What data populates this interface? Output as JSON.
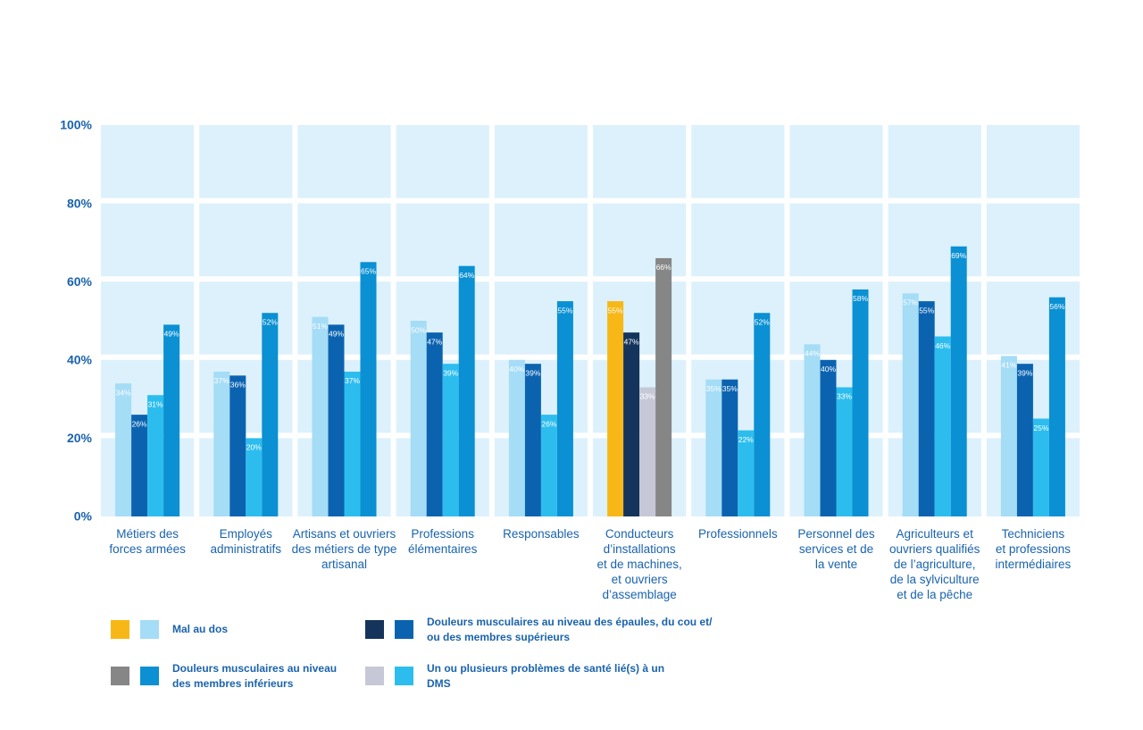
{
  "chart_data": {
    "type": "bar",
    "categories": [
      "Métiers des\nforces armées",
      "Employés\nadministratifs",
      "Artisans et ouvriers\ndes métiers de type\nartisanal",
      "Professions\nélémentaires",
      "Responsables",
      "Conducteurs\nd’installations\net de machines,\net ouvriers\nd’assemblage",
      "Professionnels",
      "Personnel des\nservices et de\nla vente",
      "Agriculteurs et\nouvriers qualifiés\nde l’agriculture,\nde la sylviculture\net de la pêche",
      "Techniciens\net professions\nintermédiaires"
    ],
    "series": [
      {
        "name": "Mal au dos",
        "color": "#a5dcf6",
        "colors": [
          "#a5dcf6",
          "#a5dcf6",
          "#a5dcf6",
          "#a5dcf6",
          "#a5dcf6",
          "#f7b817",
          "#a5dcf6",
          "#a5dcf6",
          "#a5dcf6",
          "#a5dcf6"
        ],
        "values": [
          34,
          37,
          51,
          50,
          40,
          55,
          35,
          44,
          57,
          41
        ],
        "value_labels": [
          "34%",
          "37%",
          "51%",
          "50%",
          "40%",
          "55%",
          "35%",
          "44%",
          "57%",
          "41%"
        ]
      },
      {
        "name": "Douleurs musculaires au niveau des épaules, du cou et/ ou des membres supérieurs",
        "color": "#0b63b0",
        "colors": [
          "#0b63b0",
          "#0b63b0",
          "#0b63b0",
          "#0b63b0",
          "#0b63b0",
          "#15345c",
          "#0b63b0",
          "#0b63b0",
          "#0b63b0",
          "#0b63b0"
        ],
        "values": [
          26,
          36,
          49,
          47,
          39,
          47,
          35,
          40,
          55,
          39
        ],
        "value_labels": [
          "26%",
          "36%",
          "49%",
          "47%",
          "39%",
          "47%",
          "35%",
          "40%",
          "55%",
          "39%"
        ]
      },
      {
        "name": "Un ou plusieurs problèmes de santé lié(s) à un DMS",
        "color": "#2cbdee",
        "colors": [
          "#2cbdee",
          "#2cbdee",
          "#2cbdee",
          "#2cbdee",
          "#2cbdee",
          "#c6c8d7",
          "#2cbdee",
          "#2cbdee",
          "#2cbdee",
          "#2cbdee"
        ],
        "values": [
          31,
          20,
          37,
          39,
          26,
          33,
          22,
          33,
          46,
          25
        ],
        "value_labels": [
          "31%",
          "20%",
          "37%",
          "39%",
          "26%",
          "33%",
          "22%",
          "33%",
          "46%",
          "25%"
        ]
      },
      {
        "name": "Douleurs musculaires au niveau des membres inférieurs",
        "color": "#0a90d3",
        "colors": [
          "#0a90d3",
          "#0a90d3",
          "#0a90d3",
          "#0a90d3",
          "#0a90d3",
          "#868686",
          "#0a90d3",
          "#0a90d3",
          "#0a90d3",
          "#0a90d3"
        ],
        "values": [
          49,
          52,
          65,
          64,
          55,
          66,
          52,
          58,
          69,
          56
        ],
        "value_labels": [
          "49%",
          "52%",
          "65%",
          "64%",
          "55%",
          "66%",
          "52%",
          "58%",
          "69%",
          "56%"
        ]
      }
    ],
    "ylim": [
      0,
      100
    ],
    "yticks": [
      {
        "value": 0,
        "label": "0%"
      },
      {
        "value": 20,
        "label": "20%"
      },
      {
        "value": 40,
        "label": "40%"
      },
      {
        "value": 60,
        "label": "60%"
      },
      {
        "value": 80,
        "label": "80%"
      },
      {
        "value": 100,
        "label": "100%"
      }
    ],
    "grid": true
  }
}
